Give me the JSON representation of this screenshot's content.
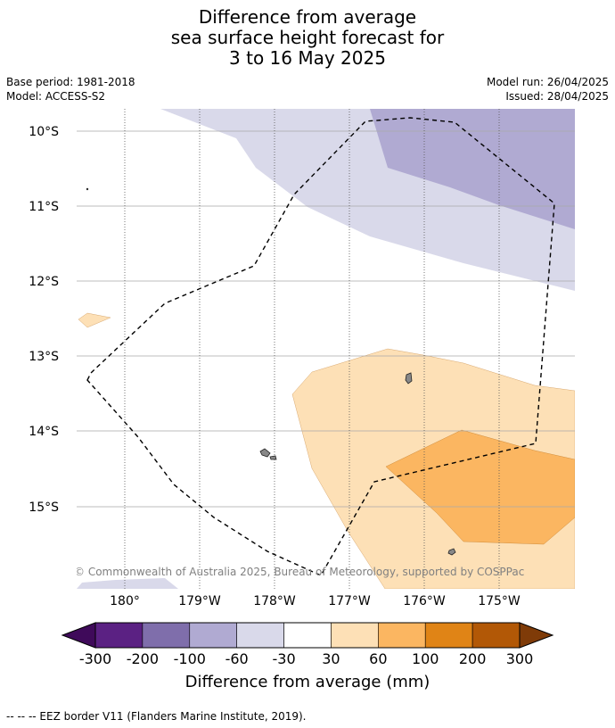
{
  "title": {
    "line1": "Difference from average",
    "line2": "sea surface height forecast for",
    "line3": "3 to 16 May 2025"
  },
  "meta": {
    "base_period": "Base period: 1981-2018",
    "model": "Model: ACCESS-S2",
    "model_run": "Model run: 26/04/2025",
    "issued": "Issued: 28/04/2025"
  },
  "map": {
    "lat_labels": [
      "10°S",
      "11°S",
      "12°S",
      "13°S",
      "14°S",
      "15°S"
    ],
    "lon_labels": [
      "180°",
      "179°W",
      "178°W",
      "177°W",
      "176°W",
      "175°W"
    ],
    "copyright": "© Commonwealth of Australia 2025, Bureau of Meteorology, supported by COSPPac"
  },
  "colorbar": {
    "ticks": [
      "-300",
      "-200",
      "-100",
      "-60",
      "-30",
      "30",
      "60",
      "100",
      "200",
      "300"
    ],
    "colors": [
      "#3f0a5a",
      "#5b2183",
      "#7f6eab",
      "#b0aad2",
      "#d9d9ea",
      "#ffffff",
      "#fde0b6",
      "#fbb661",
      "#e08416",
      "#b25806",
      "#7f3b08"
    ],
    "label": "Difference from average (mm)"
  },
  "footnote": "--  --  -- EEZ border V11 (Flanders Marine Institute, 2019)."
}
